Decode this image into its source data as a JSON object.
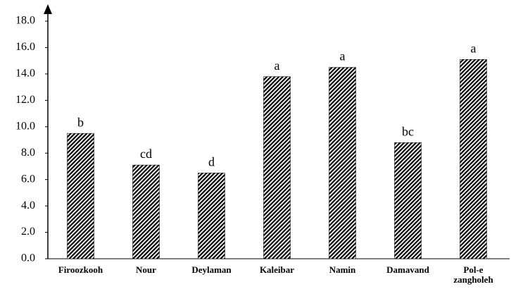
{
  "chart_data": {
    "type": "bar",
    "categories": [
      "Firoozkooh",
      "Nour",
      "Deylaman",
      "Kaleibar",
      "Namin",
      "Damavand",
      "Pol-e zangholeh"
    ],
    "values": [
      9.5,
      7.1,
      6.5,
      13.8,
      14.5,
      8.8,
      15.1
    ],
    "annotations": [
      "b",
      "cd",
      "d",
      "a",
      "a",
      "bc",
      "a"
    ],
    "color": "#000000",
    "ylim": [
      0,
      18
    ],
    "yticks": [
      {
        "value": 0,
        "label": "0.0"
      },
      {
        "value": 2,
        "label": "2.0"
      },
      {
        "value": 4,
        "label": "4.0"
      },
      {
        "value": 6,
        "label": "6.0"
      },
      {
        "value": 8,
        "label": "8.0"
      },
      {
        "value": 10,
        "label": "10.0"
      },
      {
        "value": 12,
        "label": "12.0"
      },
      {
        "value": 14,
        "label": "14.0"
      },
      {
        "value": 16,
        "label": "16.0"
      },
      {
        "value": 18,
        "label": "18.0"
      }
    ],
    "grid": false
  }
}
